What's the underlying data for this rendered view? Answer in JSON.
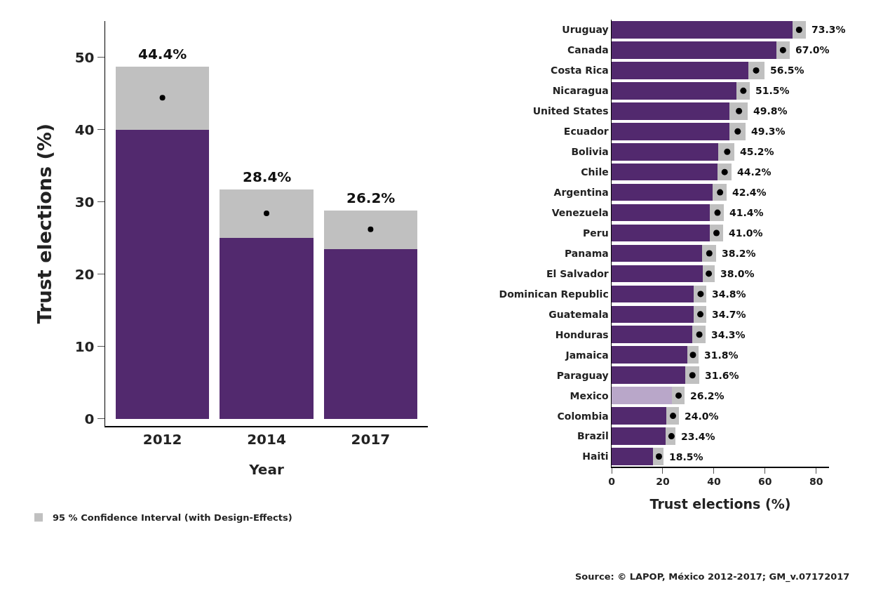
{
  "chart_data": [
    {
      "type": "bar",
      "stacked": true,
      "xlabel": "Year",
      "ylabel": "Trust elections (%)",
      "categories": [
        "2012",
        "2014",
        "2017"
      ],
      "ylim": [
        -1,
        55
      ],
      "yticks": [
        0,
        10,
        20,
        30,
        40,
        50
      ],
      "legend": "bottom left",
      "marker": "circle",
      "grid": false,
      "series": [
        {
          "color": "#52296e",
          "values": [
            40.0,
            25.0,
            23.5
          ]
        },
        {
          "name": "95 % Confidence Interval (with Design-Effects)",
          "color": "#c0c0c0",
          "values": [
            8.7,
            6.7,
            5.3
          ]
        },
        {
          "type": "scatter",
          "color": "#000000",
          "values": [
            44.4,
            28.4,
            26.2
          ],
          "value_labels": [
            "44.4%",
            "28.4%",
            "26.2%"
          ]
        }
      ]
    },
    {
      "type": "bar",
      "stacked": true,
      "orientation": "horizontal",
      "xlabel": "Trust elections (%)",
      "categories": [
        "Uruguay",
        "Canada",
        "Costa Rica",
        "Nicaragua",
        "United States",
        "Ecuador",
        "Bolivia",
        "Chile",
        "Argentina",
        "Venezuela",
        "Peru",
        "Panama",
        "El Salvador",
        "Dominican Republic",
        "Guatemala",
        "Honduras",
        "Jamaica",
        "Paraguay",
        "Mexico",
        "Colombia",
        "Brazil",
        "Haiti"
      ],
      "xlim": [
        0,
        85
      ],
      "xticks": [
        0,
        20,
        40,
        60,
        80
      ],
      "legend": false,
      "marker": "circle",
      "grid": false,
      "annotations": [
        "Source: © LAPOP, México 2012-2017; GM_v.07172017"
      ],
      "series": [
        {
          "color": "#52296e",
          "colors": [
            null,
            null,
            null,
            null,
            null,
            null,
            null,
            null,
            null,
            null,
            null,
            null,
            null,
            null,
            null,
            null,
            null,
            null,
            "#b9a7c9",
            null,
            null,
            null
          ],
          "values": [
            70.7,
            64.5,
            53.5,
            48.7,
            46.2,
            46.2,
            41.8,
            41.4,
            39.6,
            38.5,
            38.5,
            35.3,
            35.6,
            32.2,
            32.0,
            31.5,
            29.5,
            28.8,
            23.6,
            21.5,
            21.2,
            16.3
          ]
        },
        {
          "color": "#c0c0c0",
          "values": [
            5.3,
            5.1,
            6.2,
            5.3,
            6.9,
            6.2,
            6.3,
            5.6,
            5.3,
            5.5,
            5.0,
            5.5,
            4.6,
            4.9,
            5.1,
            5.3,
            4.6,
            5.5,
            5.0,
            4.9,
            3.8,
            4.0
          ]
        },
        {
          "type": "scatter",
          "color": "#000000",
          "values": [
            73.3,
            67.0,
            56.5,
            51.5,
            49.8,
            49.3,
            45.2,
            44.2,
            42.4,
            41.4,
            41.0,
            38.2,
            38.0,
            34.8,
            34.7,
            34.3,
            31.8,
            31.6,
            26.2,
            24.0,
            23.4,
            18.5
          ],
          "value_labels": [
            "73.3%",
            "67.0%",
            "56.5%",
            "51.5%",
            "49.8%",
            "49.3%",
            "45.2%",
            "44.2%",
            "42.4%",
            "41.4%",
            "41.0%",
            "38.2%",
            "38.0%",
            "34.8%",
            "34.7%",
            "34.3%",
            "31.8%",
            "31.6%",
            "26.2%",
            "24.0%",
            "23.4%",
            "18.5%"
          ]
        }
      ]
    }
  ]
}
